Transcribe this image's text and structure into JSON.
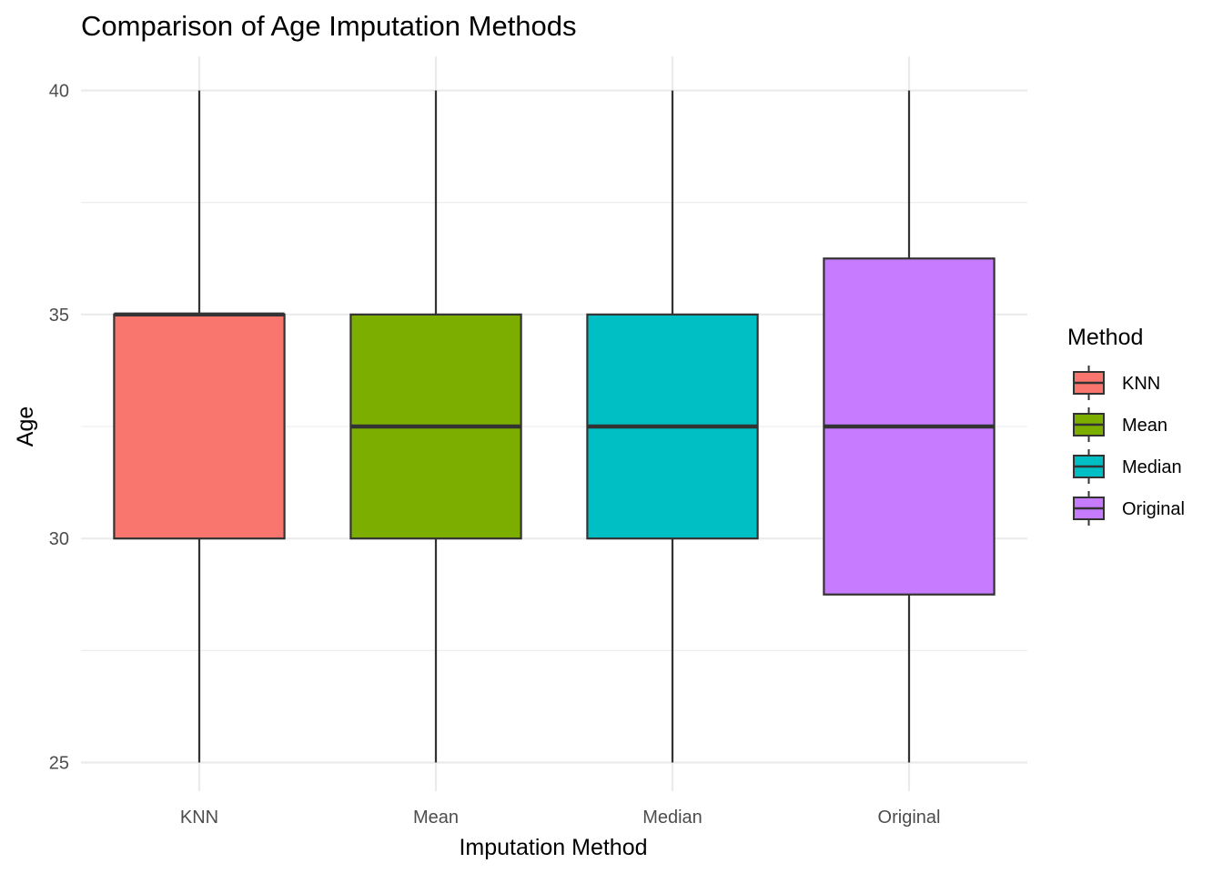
{
  "chart_data": {
    "type": "box",
    "title": "Comparison of Age Imputation Methods",
    "xlabel": "Imputation Method",
    "ylabel": "Age",
    "categories": [
      "KNN",
      "Mean",
      "Median",
      "Original"
    ],
    "ylim": [
      24.5,
      40.7
    ],
    "yticks": [
      25,
      30,
      35,
      40
    ],
    "grid": true,
    "boxes": [
      {
        "name": "KNN",
        "min": 25,
        "q1": 30,
        "median": 35,
        "q3": 35,
        "max": 40,
        "color": "#F8766D"
      },
      {
        "name": "Mean",
        "min": 25,
        "q1": 30,
        "median": 32.5,
        "q3": 35,
        "max": 40,
        "color": "#7CAE00"
      },
      {
        "name": "Median",
        "min": 25,
        "q1": 30,
        "median": 32.5,
        "q3": 35,
        "max": 40,
        "color": "#00BFC4"
      },
      {
        "name": "Original",
        "min": 25,
        "q1": 28.75,
        "median": 32.5,
        "q3": 36.25,
        "max": 40,
        "color": "#C77CFF"
      }
    ],
    "legend": {
      "title": "Method",
      "position": "right",
      "entries": [
        "KNN",
        "Mean",
        "Median",
        "Original"
      ]
    }
  }
}
